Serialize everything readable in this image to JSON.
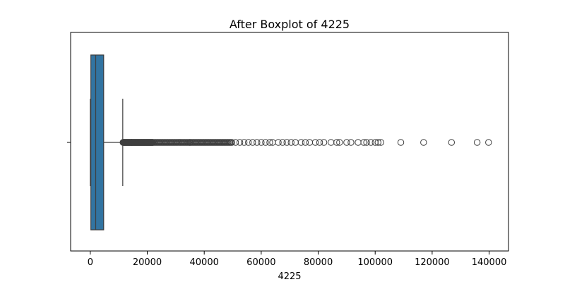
{
  "chart_data": {
    "type": "boxplot",
    "title": "After Boxplot of 4225",
    "xlabel": "4225",
    "ylabel": "",
    "xlim": [
      -6900,
      146800
    ],
    "xticks": [
      0,
      20000,
      40000,
      60000,
      80000,
      100000,
      120000,
      140000
    ],
    "xtick_labels": [
      "0",
      "20000",
      "40000",
      "60000",
      "80000",
      "100000",
      "120000",
      "140000"
    ],
    "grid": false,
    "box": {
      "whisker_low": 0,
      "q1": 200,
      "median": 1900,
      "q3": 4700,
      "whisker_high": 11400,
      "color": "#3274a1"
    },
    "outlier_ranges": [
      [
        11500,
        14500
      ],
      [
        14500,
        22000
      ],
      [
        22000,
        35000
      ],
      [
        35000,
        50000
      ]
    ],
    "outliers": [
      51000,
      52500,
      54000,
      55500,
      57000,
      58500,
      60000,
      61500,
      63000,
      64000,
      66000,
      67500,
      69000,
      70500,
      72000,
      74000,
      75500,
      77000,
      79000,
      80500,
      82000,
      84500,
      86500,
      87500,
      90000,
      91500,
      94000,
      96000,
      97000,
      98500,
      100000,
      101000,
      102000,
      109000,
      117000,
      126800,
      135800,
      139800
    ]
  }
}
